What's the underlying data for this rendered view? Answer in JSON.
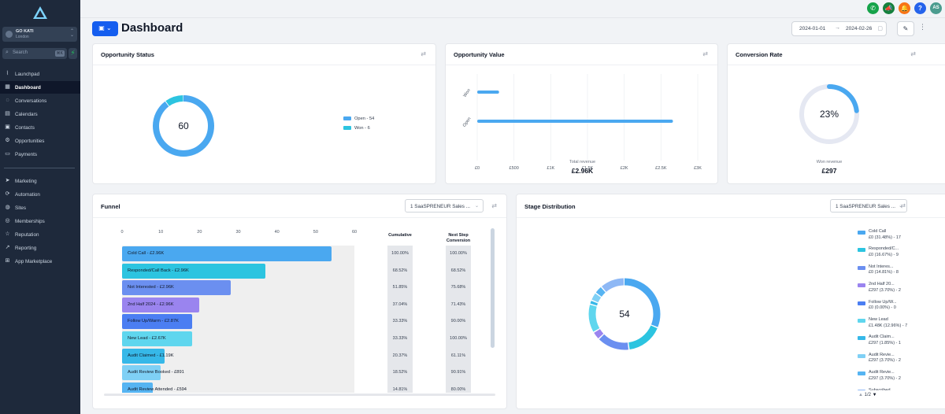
{
  "sidebar": {
    "account": {
      "name": "GO KATI",
      "location": "London"
    },
    "search": {
      "placeholder": "Search",
      "shortcut": "⌘K"
    },
    "items": [
      {
        "label": "Launchpad",
        "icon": "rocket-icon"
      },
      {
        "label": "Dashboard",
        "icon": "dashboard-icon",
        "active": true
      },
      {
        "label": "Conversations",
        "icon": "chat-icon"
      },
      {
        "label": "Calendars",
        "icon": "calendar-icon"
      },
      {
        "label": "Contacts",
        "icon": "contacts-icon"
      },
      {
        "label": "Opportunities",
        "icon": "opportunities-icon"
      },
      {
        "label": "Payments",
        "icon": "payments-icon"
      },
      {
        "label": "Marketing",
        "icon": "send-icon"
      },
      {
        "label": "Automation",
        "icon": "automation-icon"
      },
      {
        "label": "Sites",
        "icon": "globe-icon"
      },
      {
        "label": "Memberships",
        "icon": "membership-icon"
      },
      {
        "label": "Reputation",
        "icon": "star-icon"
      },
      {
        "label": "Reporting",
        "icon": "trend-icon"
      },
      {
        "label": "App Marketplace",
        "icon": "grid-icon"
      }
    ]
  },
  "topbar": {
    "user_initials": "AS",
    "icons": [
      {
        "name": "phone-icon",
        "color": "#16a34a"
      },
      {
        "name": "megaphone-icon",
        "color": "#15803d"
      },
      {
        "name": "bell-icon",
        "color": "#f97316"
      },
      {
        "name": "help-icon",
        "color": "#2563eb"
      }
    ],
    "avatar_color": "#4b9c8f"
  },
  "header": {
    "title": "Dashboard",
    "date_start": "2024-01-01",
    "date_end": "2024-02-26"
  },
  "opportunity_status": {
    "title": "Opportunity Status",
    "total": "60",
    "legend": [
      {
        "label": "Open - 54",
        "color": "#4aa8f0"
      },
      {
        "label": "Won - 6",
        "color": "#2cc4e0"
      }
    ]
  },
  "opportunity_value": {
    "title": "Opportunity Value",
    "caption": "Total revenue",
    "value": "£2.96K"
  },
  "conversion_rate": {
    "title": "Conversion Rate",
    "percent": "23%",
    "caption": "Won revenue",
    "value": "£297"
  },
  "funnel": {
    "title": "Funnel",
    "pipeline": "1 SaaSPRENEUR Sales ...",
    "col_cumulative": "Cumulative",
    "col_next": "Next Step Conversion"
  },
  "stage_distribution": {
    "title": "Stage Distribution",
    "pipeline": "1 SaaSPRENEUR Sales ...",
    "total": "54",
    "page": "1/2",
    "legend": [
      {
        "name": "Cold Call",
        "detail": "£0 (31.48%) - 17",
        "color": "#4aa8f0"
      },
      {
        "name": "Responded/C...",
        "detail": "£0 (16.67%) - 9",
        "color": "#2cc4e0"
      },
      {
        "name": "Not Interes...",
        "detail": "£0 (14.81%) - 8",
        "color": "#6b8ff0"
      },
      {
        "name": "2nd Half 20...",
        "detail": "£297 (3.70%) - 2",
        "color": "#9a84ef"
      },
      {
        "name": "Follow Up/W...",
        "detail": "£0 (0.00%) - 0",
        "color": "#4b7ef2"
      },
      {
        "name": "New Lead",
        "detail": "£1.48K (12.96%) - 7",
        "color": "#5fd6ee"
      },
      {
        "name": "Audit Claim...",
        "detail": "£297 (1.85%) - 1",
        "color": "#36b8e8"
      },
      {
        "name": "Audit Revie...",
        "detail": "£297 (3.70%) - 2",
        "color": "#7fd0f5"
      },
      {
        "name": "Audit Revie...",
        "detail": "£297 (3.70%) - 2",
        "color": "#56b4f2"
      },
      {
        "name": "Subscribed",
        "detail": "",
        "color": "#8eb8f5"
      }
    ]
  },
  "chart_data": [
    {
      "type": "pie",
      "title": "Opportunity Status",
      "categories": [
        "Open",
        "Won"
      ],
      "values": [
        54,
        6
      ]
    },
    {
      "type": "bar",
      "orientation": "horizontal",
      "title": "Opportunity Value",
      "categories": [
        "Won",
        "Open"
      ],
      "values": [
        297,
        2663
      ],
      "xticks": [
        "£0",
        "£500",
        "£1K",
        "£1.5K",
        "£2K",
        "£2.5K",
        "£3K"
      ],
      "xlim": [
        0,
        3000
      ],
      "grid": true
    },
    {
      "type": "pie",
      "title": "Conversion Rate",
      "categories": [
        "Won",
        "Remaining"
      ],
      "values": [
        23,
        77
      ]
    },
    {
      "type": "bar",
      "orientation": "horizontal",
      "title": "Funnel",
      "xticks": [
        "0",
        "10",
        "20",
        "30",
        "40",
        "50",
        "60"
      ],
      "xlim": [
        0,
        60
      ],
      "bars": [
        {
          "label": "Cold Call - £2.96K",
          "value": 54,
          "cumulative": "100.00%",
          "next": "100.00%",
          "color": "#4aa8f0"
        },
        {
          "label": "Responded/Call Back - £2.96K",
          "value": 37,
          "cumulative": "68.52%",
          "next": "68.52%",
          "color": "#2cc4e0"
        },
        {
          "label": "Not Interested - £2.96K",
          "value": 28,
          "cumulative": "51.85%",
          "next": "75.68%",
          "color": "#6b8ff0"
        },
        {
          "label": "2nd Half 2024 - £2.96K",
          "value": 20,
          "cumulative": "37.04%",
          "next": "71.43%",
          "color": "#9a84ef"
        },
        {
          "label": "Follow Up/Warm - £2.87K",
          "value": 18,
          "cumulative": "33.33%",
          "next": "90.00%",
          "color": "#4b7ef2"
        },
        {
          "label": "New Lead - £2.67K",
          "value": 18,
          "cumulative": "33.33%",
          "next": "100.00%",
          "color": "#5fd6ee"
        },
        {
          "label": "Audit Claimed - £1.19K",
          "value": 11,
          "cumulative": "20.37%",
          "next": "61.11%",
          "color": "#36b8e8"
        },
        {
          "label": "Audit Review Booked - £891",
          "value": 10,
          "cumulative": "18.52%",
          "next": "90.91%",
          "color": "#7fd0f5"
        },
        {
          "label": "Audit Review Attended - £594",
          "value": 8,
          "cumulative": "14.81%",
          "next": "80.00%",
          "color": "#56b4f2"
        }
      ]
    },
    {
      "type": "pie",
      "title": "Stage Distribution",
      "categories": [
        "Cold Call",
        "Responded/C...",
        "Not Interes...",
        "2nd Half 20...",
        "Follow Up/W...",
        "New Lead",
        "Audit Claim...",
        "Audit Revie...",
        "Audit Revie...",
        "Subscribed"
      ],
      "values": [
        17,
        9,
        8,
        2,
        0,
        7,
        1,
        2,
        2,
        6
      ]
    }
  ]
}
